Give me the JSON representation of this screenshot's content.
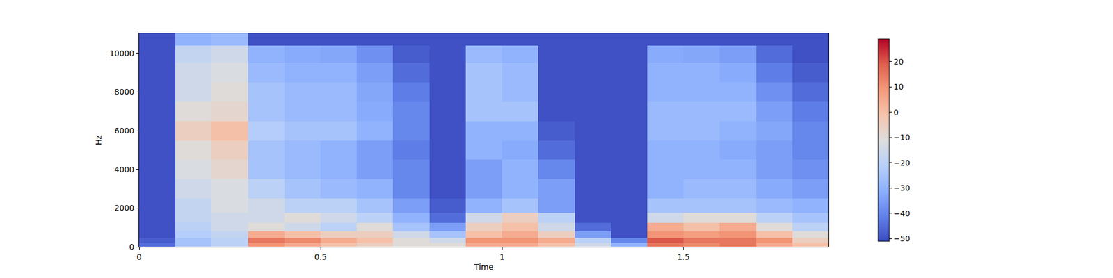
{
  "chart_data": {
    "type": "heatmap",
    "x_label": "Time",
    "y_label": "Hz",
    "xlim": [
      0,
      1.9
    ],
    "xticks": [
      0,
      0.5,
      1,
      1.5
    ],
    "ylim": [
      0,
      11025
    ],
    "yticks": [
      0,
      2000,
      4000,
      6000,
      8000,
      10000
    ],
    "x": [
      0.05,
      0.15,
      0.25,
      0.35,
      0.45,
      0.55,
      0.65,
      0.75,
      0.85,
      0.95,
      1.05,
      1.15,
      1.25,
      1.35,
      1.45,
      1.55,
      1.65,
      1.75,
      1.85
    ],
    "y": [
      100,
      300,
      600,
      1000,
      1500,
      2000,
      3000,
      4000,
      5000,
      6000,
      7000,
      8000,
      9000,
      10000,
      10800
    ],
    "cells": [
      [
        -45,
        -25,
        -20,
        10,
        5,
        0,
        -5,
        -10,
        -10,
        5,
        5,
        0,
        -15,
        -30,
        15,
        12,
        15,
        5,
        0
      ],
      [
        -48,
        -25,
        -20,
        15,
        12,
        5,
        0,
        -10,
        -15,
        10,
        10,
        5,
        -20,
        -40,
        20,
        15,
        15,
        10,
        -5
      ],
      [
        -50,
        -22,
        -18,
        5,
        0,
        -5,
        -5,
        -15,
        -25,
        0,
        5,
        -5,
        -35,
        -50,
        10,
        8,
        10,
        0,
        -10
      ],
      [
        -50,
        -20,
        -15,
        -10,
        -15,
        -20,
        -10,
        -25,
        -35,
        -5,
        0,
        -15,
        -45,
        -50,
        5,
        0,
        5,
        -10,
        -20
      ],
      [
        -50,
        -18,
        -15,
        -15,
        -10,
        -15,
        -20,
        -30,
        -45,
        -15,
        -5,
        -20,
        -50,
        -50,
        -15,
        -10,
        -10,
        -20,
        -25
      ],
      [
        -50,
        -18,
        -12,
        -15,
        -20,
        -20,
        -25,
        -35,
        -48,
        -30,
        -25,
        -35,
        -50,
        -50,
        -25,
        -25,
        -25,
        -28,
        -30
      ],
      [
        -50,
        -15,
        -12,
        -20,
        -25,
        -28,
        -30,
        -40,
        -50,
        -35,
        -30,
        -35,
        -50,
        -50,
        -30,
        -28,
        -28,
        -32,
        -35
      ],
      [
        -50,
        -12,
        -8,
        -25,
        -28,
        -30,
        -35,
        -40,
        -50,
        -35,
        -30,
        -40,
        -50,
        -50,
        -30,
        -30,
        -30,
        -35,
        -38
      ],
      [
        -50,
        -10,
        -5,
        -25,
        -28,
        -30,
        -35,
        -42,
        -50,
        -30,
        -32,
        -45,
        -50,
        -50,
        -30,
        -30,
        -32,
        -35,
        -40
      ],
      [
        -50,
        -5,
        0,
        -22,
        -25,
        -25,
        -30,
        -40,
        -50,
        -30,
        -30,
        -48,
        -50,
        -50,
        -28,
        -28,
        -30,
        -33,
        -40
      ],
      [
        -50,
        -10,
        -8,
        -25,
        -28,
        -28,
        -32,
        -40,
        -50,
        -25,
        -25,
        -50,
        -50,
        -50,
        -28,
        -28,
        -28,
        -35,
        -42
      ],
      [
        -50,
        -15,
        -10,
        -25,
        -28,
        -28,
        -33,
        -42,
        -50,
        -25,
        -28,
        -50,
        -50,
        -50,
        -30,
        -30,
        -30,
        -38,
        -45
      ],
      [
        -50,
        -15,
        -12,
        -28,
        -30,
        -30,
        -35,
        -45,
        -50,
        -25,
        -28,
        -50,
        -50,
        -50,
        -30,
        -30,
        -32,
        -42,
        -48
      ],
      [
        -50,
        -18,
        -15,
        -30,
        -32,
        -33,
        -38,
        -48,
        -50,
        -28,
        -30,
        -50,
        -50,
        -50,
        -32,
        -33,
        -35,
        -45,
        -50
      ],
      [
        -50,
        -30,
        -28,
        -50,
        -50,
        -50,
        -50,
        -50,
        -50,
        -50,
        -50,
        -50,
        -50,
        -50,
        -50,
        -50,
        -50,
        -50,
        -50
      ]
    ],
    "colorbar_range": [
      -51,
      29
    ],
    "colorbar_ticks": [
      {
        "value": -50,
        "label": "−50"
      },
      {
        "value": -40,
        "label": "−40"
      },
      {
        "value": -30,
        "label": "−30"
      },
      {
        "value": -20,
        "label": "−20"
      },
      {
        "value": -10,
        "label": "−10"
      },
      0,
      10,
      20
    ]
  }
}
